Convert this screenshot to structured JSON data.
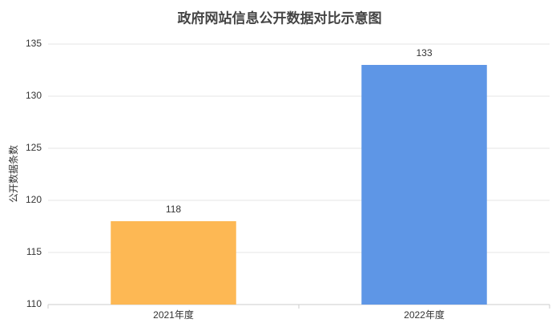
{
  "chart_data": {
    "type": "bar",
    "title": "政府网站信息公开数据对比示意图",
    "y_label": "公开数据条数",
    "categories": [
      "2021年度",
      "2022年度"
    ],
    "values": [
      118,
      133
    ],
    "colors": [
      "#fdb854",
      "#5e96e6"
    ],
    "ylim": [
      110,
      135
    ],
    "yticks": [
      110,
      115,
      120,
      125,
      130,
      135
    ],
    "grid": true
  }
}
